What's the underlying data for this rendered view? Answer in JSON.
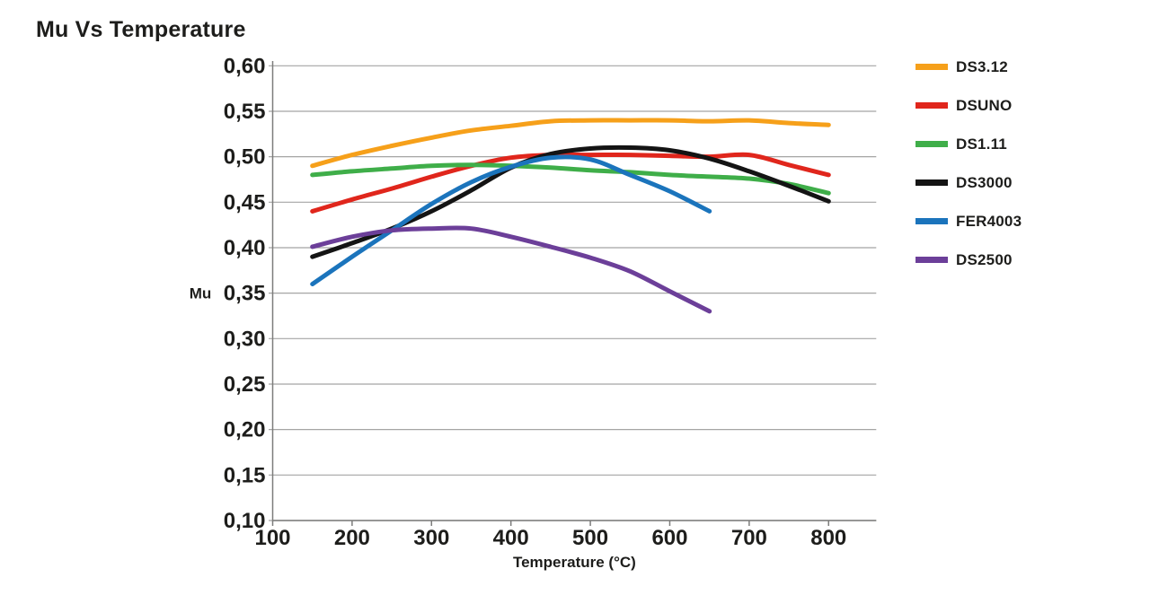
{
  "chart_data": {
    "type": "line",
    "title": "Mu Vs Temperature",
    "xlabel": "Temperature (°C)",
    "ylabel": "Mu",
    "xlim": [
      100,
      860
    ],
    "ylim": [
      0.1,
      0.6
    ],
    "x_ticks": [
      100,
      200,
      300,
      400,
      500,
      600,
      700,
      800
    ],
    "x_tick_labels": [
      "100",
      "200",
      "300",
      "400",
      "500",
      "600",
      "700",
      "800"
    ],
    "y_ticks": [
      0.1,
      0.15,
      0.2,
      0.25,
      0.3,
      0.35,
      0.4,
      0.45,
      0.5,
      0.55,
      0.6
    ],
    "y_tick_labels": [
      "0,10",
      "0,15",
      "0,20",
      "0,25",
      "0,30",
      "0,35",
      "0,40",
      "0,45",
      "0,50",
      "0,55",
      "0,60"
    ],
    "grid": true,
    "legend_position": "right",
    "grid_color": "#a5a5a4",
    "axis_color": "#7c7c7b",
    "text_color": "#1d1d1b",
    "line_width": 5,
    "series": [
      {
        "name": "DS3.12",
        "color": "#F6A01A",
        "x": [
          150,
          200,
          250,
          300,
          350,
          400,
          450,
          500,
          550,
          600,
          650,
          700,
          750,
          800
        ],
        "y": [
          0.49,
          0.502,
          0.512,
          0.521,
          0.529,
          0.534,
          0.539,
          0.54,
          0.54,
          0.54,
          0.539,
          0.54,
          0.537,
          0.535
        ]
      },
      {
        "name": "DSUNO",
        "color": "#E0261C",
        "x": [
          150,
          200,
          250,
          300,
          350,
          400,
          450,
          500,
          550,
          600,
          650,
          700,
          750,
          800
        ],
        "y": [
          0.44,
          0.453,
          0.465,
          0.478,
          0.49,
          0.499,
          0.502,
          0.502,
          0.502,
          0.501,
          0.5,
          0.502,
          0.491,
          0.48
        ]
      },
      {
        "name": "DS1.11",
        "color": "#3FAE49",
        "x": [
          150,
          200,
          250,
          300,
          350,
          400,
          450,
          500,
          550,
          600,
          650,
          700,
          750,
          800
        ],
        "y": [
          0.48,
          0.484,
          0.487,
          0.49,
          0.491,
          0.49,
          0.488,
          0.485,
          0.483,
          0.48,
          0.478,
          0.476,
          0.47,
          0.46
        ]
      },
      {
        "name": "DS3000",
        "color": "#141414",
        "x": [
          150,
          200,
          250,
          300,
          350,
          400,
          450,
          500,
          550,
          600,
          650,
          700,
          750,
          800
        ],
        "y": [
          0.39,
          0.405,
          0.421,
          0.44,
          0.463,
          0.488,
          0.503,
          0.509,
          0.51,
          0.507,
          0.498,
          0.484,
          0.468,
          0.451
        ]
      },
      {
        "name": "FER4003",
        "color": "#1B74BC",
        "x": [
          150,
          200,
          250,
          300,
          350,
          400,
          450,
          500,
          550,
          600,
          650
        ],
        "y": [
          0.36,
          0.39,
          0.419,
          0.448,
          0.472,
          0.489,
          0.499,
          0.497,
          0.48,
          0.462,
          0.44
        ]
      },
      {
        "name": "DS2500",
        "color": "#6C3F99",
        "x": [
          150,
          200,
          250,
          300,
          350,
          400,
          450,
          500,
          550,
          600,
          650
        ],
        "y": [
          0.401,
          0.412,
          0.419,
          0.421,
          0.421,
          0.412,
          0.401,
          0.389,
          0.374,
          0.352,
          0.33
        ]
      }
    ]
  }
}
